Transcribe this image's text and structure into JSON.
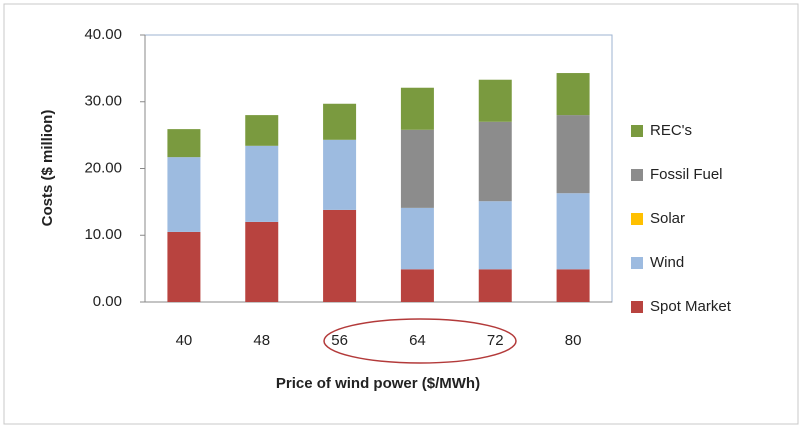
{
  "chart_data": {
    "type": "stacked-bar",
    "y_label": "Costs ($ million)",
    "x_label": "Price of wind power ($/MWh)",
    "categories": [
      "40",
      "48",
      "56",
      "64",
      "72",
      "80"
    ],
    "series": [
      {
        "name": "Spot Market",
        "color": "#b8433f",
        "values": [
          10.5,
          12.0,
          13.8,
          4.9,
          4.9,
          4.9
        ]
      },
      {
        "name": "Wind",
        "color": "#9dbbe0",
        "values": [
          11.2,
          11.4,
          10.5,
          9.2,
          10.2,
          11.4
        ]
      },
      {
        "name": "Solar",
        "color": "#ffc000",
        "values": [
          0,
          0,
          0,
          0,
          0,
          0
        ]
      },
      {
        "name": "Fossil Fuel",
        "color": "#8c8c8c",
        "values": [
          0,
          0,
          0,
          11.7,
          11.9,
          11.7
        ]
      },
      {
        "name": "REC's",
        "color": "#7a9a3f",
        "values": [
          4.2,
          4.6,
          5.4,
          6.3,
          6.3,
          6.3
        ]
      }
    ],
    "ylim": [
      0,
      40
    ],
    "yticks": [
      {
        "value": 0,
        "label": "0.00"
      },
      {
        "value": 10,
        "label": "10.00"
      },
      {
        "value": 20,
        "label": "20.00"
      },
      {
        "value": 30,
        "label": "30.00"
      },
      {
        "value": 40,
        "label": "40.00"
      }
    ],
    "grid": false,
    "legend": "right"
  }
}
